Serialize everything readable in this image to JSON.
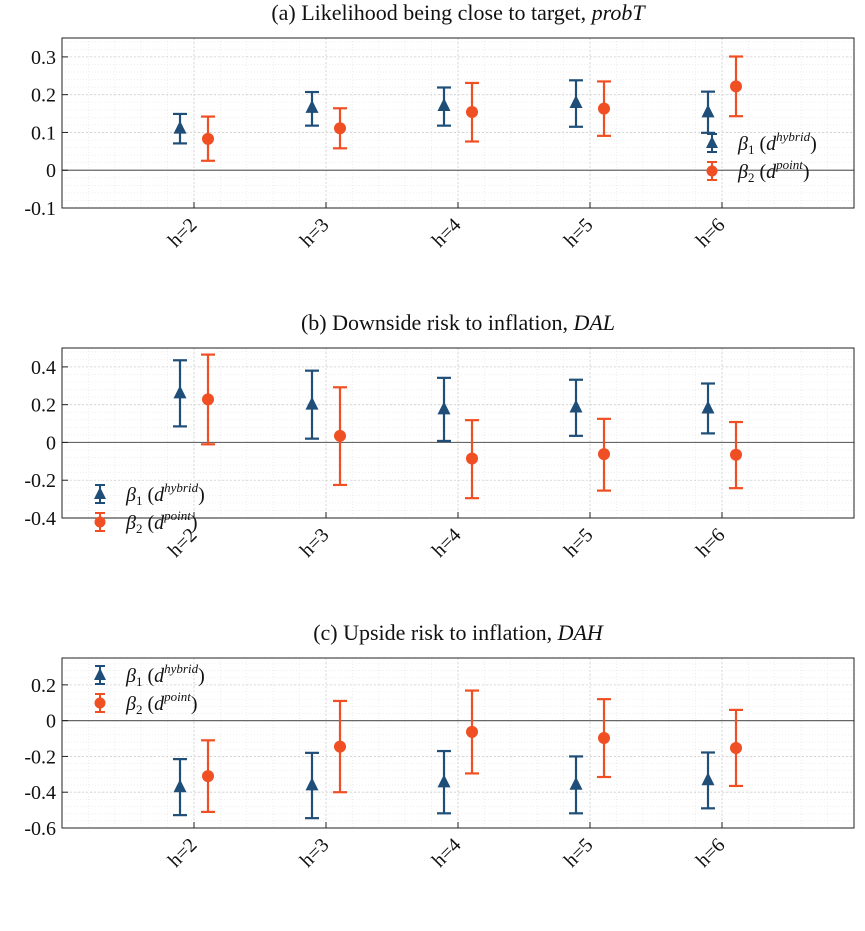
{
  "chart_data": [
    {
      "type": "errorbar",
      "title_prefix": "(a) Likelihood being close to target,",
      "title_italic": "probT",
      "categories": [
        "h=2",
        "h=3",
        "h=4",
        "h=5",
        "h=6"
      ],
      "ylim": [
        -0.1,
        0.35
      ],
      "yticks": [
        -0.1,
        0,
        0.1,
        0.2,
        0.3
      ],
      "ytick_labels": [
        "-0.1",
        "0",
        "0.1",
        "0.2",
        "0.3"
      ],
      "legend_position": "right",
      "series": [
        {
          "name": "β1 (d^hybrid)",
          "label_main": "β",
          "label_sub": "1",
          "label_d": "d",
          "label_sup": "hybrid",
          "color": "#1f4e79",
          "marker": "triangle",
          "values": [
            0.11,
            0.165,
            0.17,
            0.178,
            0.153
          ],
          "lower": [
            0.071,
            0.118,
            0.118,
            0.115,
            0.099
          ],
          "upper": [
            0.149,
            0.207,
            0.219,
            0.238,
            0.208
          ]
        },
        {
          "name": "β2 (d^point)",
          "label_main": "β",
          "label_sub": "2",
          "label_d": "d",
          "label_sup": "point",
          "color": "#f04e23",
          "marker": "circle",
          "values": [
            0.083,
            0.111,
            0.154,
            0.163,
            0.222
          ],
          "lower": [
            0.025,
            0.058,
            0.076,
            0.091,
            0.143
          ],
          "upper": [
            0.142,
            0.164,
            0.231,
            0.235,
            0.301
          ]
        }
      ]
    },
    {
      "type": "errorbar",
      "title_prefix": "(b) Downside risk to inflation,",
      "title_italic": "DAL",
      "categories": [
        "h=2",
        "h=3",
        "h=4",
        "h=5",
        "h=6"
      ],
      "ylim": [
        -0.4,
        0.5
      ],
      "yticks": [
        -0.4,
        -0.2,
        0,
        0.2,
        0.4
      ],
      "ytick_labels": [
        "-0.4",
        "-0.2",
        "0",
        "0.2",
        "0.4"
      ],
      "legend_position": "left",
      "series": [
        {
          "name": "β1 (d^hybrid)",
          "label_main": "β",
          "label_sub": "1",
          "label_d": "d",
          "label_sup": "hybrid",
          "color": "#1f4e79",
          "marker": "triangle",
          "values": [
            0.26,
            0.2,
            0.175,
            0.185,
            0.18
          ],
          "lower": [
            0.085,
            0.02,
            0.008,
            0.035,
            0.048
          ],
          "upper": [
            0.435,
            0.38,
            0.342,
            0.332,
            0.312
          ]
        },
        {
          "name": "β2 (d^point)",
          "label_main": "β",
          "label_sub": "2",
          "label_d": "d",
          "label_sup": "point",
          "color": "#f04e23",
          "marker": "circle",
          "values": [
            0.228,
            0.035,
            -0.085,
            -0.062,
            -0.065
          ],
          "lower": [
            -0.01,
            -0.225,
            -0.295,
            -0.255,
            -0.242
          ],
          "upper": [
            0.465,
            0.292,
            0.118,
            0.125,
            0.108
          ]
        }
      ]
    },
    {
      "type": "errorbar",
      "title_prefix": "(c) Upside risk to inflation,",
      "title_italic": "DAH",
      "categories": [
        "h=2",
        "h=3",
        "h=4",
        "h=5",
        "h=6"
      ],
      "ylim": [
        -0.6,
        0.35
      ],
      "yticks": [
        -0.6,
        -0.4,
        -0.2,
        0,
        0.2
      ],
      "ytick_labels": [
        "-0.6",
        "-0.4",
        "-0.2",
        "0",
        "0.2"
      ],
      "legend_position": "left",
      "series": [
        {
          "name": "β1 (d^hybrid)",
          "label_main": "β",
          "label_sub": "1",
          "label_d": "d",
          "label_sup": "hybrid",
          "color": "#1f4e79",
          "marker": "triangle",
          "values": [
            -0.372,
            -0.362,
            -0.345,
            -0.358,
            -0.333
          ],
          "lower": [
            -0.528,
            -0.545,
            -0.518,
            -0.518,
            -0.49
          ],
          "upper": [
            -0.215,
            -0.18,
            -0.17,
            -0.2,
            -0.178
          ]
        },
        {
          "name": "β2 (d^point)",
          "label_main": "β",
          "label_sub": "2",
          "label_d": "d",
          "label_sup": "point",
          "color": "#f04e23",
          "marker": "circle",
          "values": [
            -0.31,
            -0.145,
            -0.063,
            -0.097,
            -0.153
          ],
          "lower": [
            -0.51,
            -0.4,
            -0.295,
            -0.315,
            -0.365
          ],
          "upper": [
            -0.11,
            0.11,
            0.168,
            0.12,
            0.06
          ]
        }
      ]
    }
  ]
}
